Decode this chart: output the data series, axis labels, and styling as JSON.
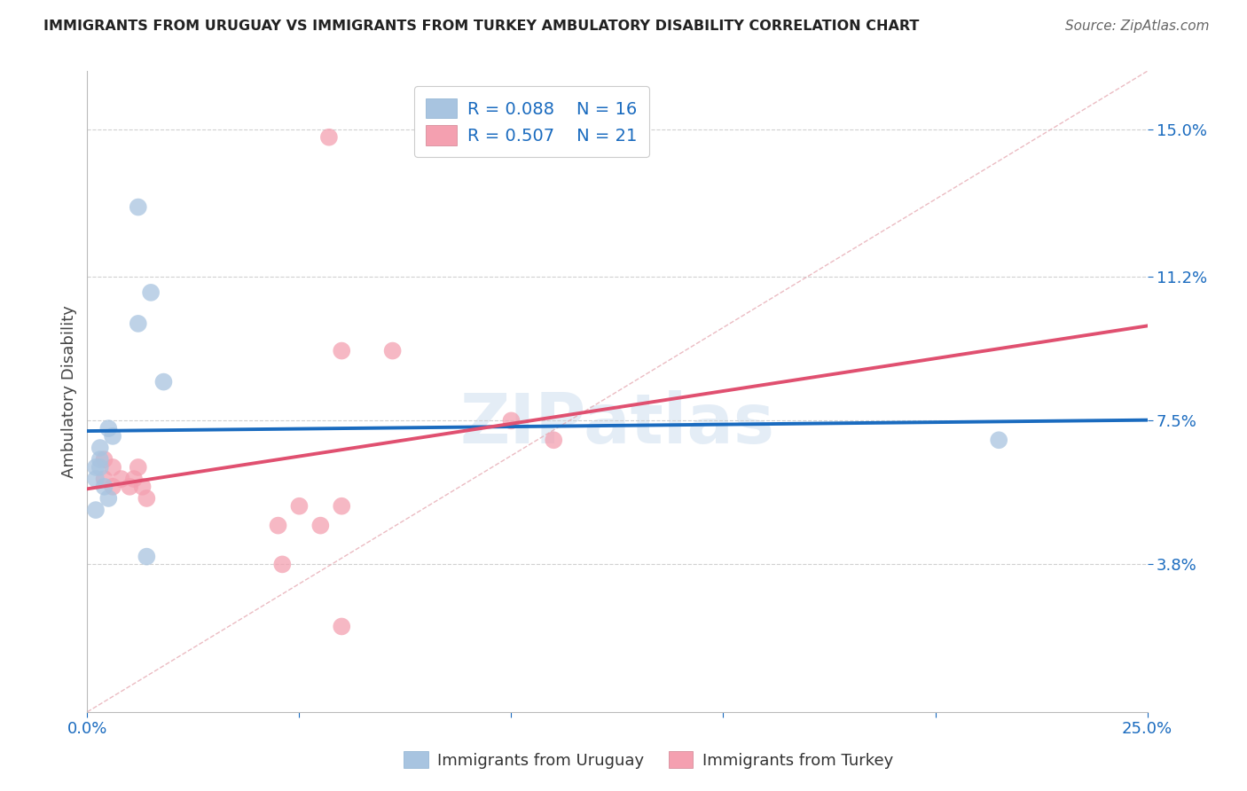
{
  "title": "IMMIGRANTS FROM URUGUAY VS IMMIGRANTS FROM TURKEY AMBULATORY DISABILITY CORRELATION CHART",
  "source": "Source: ZipAtlas.com",
  "ylabel": "Ambulatory Disability",
  "xlim": [
    0.0,
    0.25
  ],
  "ylim": [
    0.0,
    0.165
  ],
  "yticks": [
    0.038,
    0.075,
    0.112,
    0.15
  ],
  "ytick_labels": [
    "3.8%",
    "7.5%",
    "11.2%",
    "15.0%"
  ],
  "xticks": [
    0.0,
    0.05,
    0.1,
    0.15,
    0.2,
    0.25
  ],
  "xtick_labels": [
    "0.0%",
    "",
    "",
    "",
    "",
    "25.0%"
  ],
  "legend_R_uruguay": "R = 0.088",
  "legend_N_uruguay": "N = 16",
  "legend_R_turkey": "R = 0.507",
  "legend_N_turkey": "N = 21",
  "uruguay_color": "#a8c4e0",
  "turkey_color": "#f4a0b0",
  "uruguay_line_color": "#1a6bbf",
  "turkey_line_color": "#e05070",
  "diagonal_color": "#e8b0b8",
  "grid_color": "#d0d0d0",
  "uruguay_points": [
    [
      0.012,
      0.13
    ],
    [
      0.015,
      0.108
    ],
    [
      0.012,
      0.1
    ],
    [
      0.005,
      0.073
    ],
    [
      0.006,
      0.071
    ],
    [
      0.003,
      0.068
    ],
    [
      0.003,
      0.065
    ],
    [
      0.003,
      0.063
    ],
    [
      0.002,
      0.063
    ],
    [
      0.002,
      0.06
    ],
    [
      0.004,
      0.058
    ],
    [
      0.005,
      0.055
    ],
    [
      0.018,
      0.085
    ],
    [
      0.002,
      0.052
    ],
    [
      0.014,
      0.04
    ],
    [
      0.215,
      0.07
    ]
  ],
  "turkey_points": [
    [
      0.057,
      0.148
    ],
    [
      0.004,
      0.065
    ],
    [
      0.004,
      0.06
    ],
    [
      0.006,
      0.063
    ],
    [
      0.006,
      0.058
    ],
    [
      0.008,
      0.06
    ],
    [
      0.01,
      0.058
    ],
    [
      0.011,
      0.06
    ],
    [
      0.013,
      0.058
    ],
    [
      0.012,
      0.063
    ],
    [
      0.014,
      0.055
    ],
    [
      0.06,
      0.093
    ],
    [
      0.072,
      0.093
    ],
    [
      0.1,
      0.075
    ],
    [
      0.11,
      0.07
    ],
    [
      0.05,
      0.053
    ],
    [
      0.06,
      0.053
    ],
    [
      0.045,
      0.048
    ],
    [
      0.055,
      0.048
    ],
    [
      0.046,
      0.038
    ],
    [
      0.06,
      0.022
    ]
  ]
}
